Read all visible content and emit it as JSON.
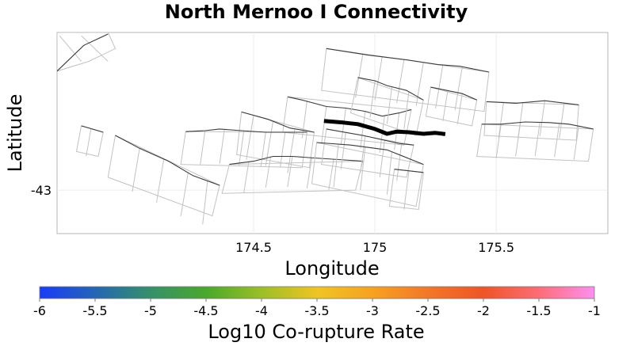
{
  "chart_data": {
    "type": "map",
    "title": "North Mernoo I Connectivity",
    "xlabel": "Longitude",
    "ylabel": "Latitude",
    "xlim": [
      173.69,
      175.96
    ],
    "ylim": [
      -43.135,
      -42.51
    ],
    "x_ticks": [
      174.5,
      175,
      175.5
    ],
    "x_tick_labels": [
      "174.5",
      "175",
      "175.5"
    ],
    "y_ticks": [
      -43
    ],
    "y_tick_labels": [
      "-43"
    ],
    "highlight_fault": {
      "name": "North Mernoo I",
      "color": "#000000",
      "trace": [
        [
          174.79,
          -42.785
        ],
        [
          174.87,
          -42.79
        ],
        [
          174.93,
          -42.795
        ],
        [
          175.0,
          -42.81
        ],
        [
          175.05,
          -42.825
        ],
        [
          175.09,
          -42.818
        ],
        [
          175.14,
          -42.82
        ],
        [
          175.2,
          -42.825
        ],
        [
          175.25,
          -42.822
        ],
        [
          175.29,
          -42.826
        ]
      ]
    },
    "fault_sections": [
      {
        "name": "fault-a",
        "trace": [
          [
            173.69,
            -42.63
          ],
          [
            173.8,
            -42.55
          ],
          [
            173.9,
            -42.515
          ]
        ],
        "cols": [
          [
            173.7,
            173.79,
            173.82,
            173.71
          ],
          [
            173.79,
            173.9,
            173.93,
            173.82
          ]
        ],
        "poly": [
          [
            173.69,
            -42.51
          ],
          [
            173.9,
            -42.51
          ],
          [
            173.93,
            -42.56
          ],
          [
            173.82,
            -42.6
          ],
          [
            173.69,
            -42.63
          ]
        ]
      },
      {
        "name": "fault-b",
        "trace": [
          [
            174.8,
            -42.56
          ],
          [
            174.97,
            -42.58
          ],
          [
            175.13,
            -42.595
          ],
          [
            175.26,
            -42.61
          ],
          [
            175.35,
            -42.615
          ],
          [
            175.47,
            -42.633
          ]
        ],
        "cols": [
          [
            174.95,
            174.92
          ],
          [
            175.03,
            175.0
          ],
          [
            175.12,
            175.09
          ],
          [
            175.2,
            175.17
          ],
          [
            175.28,
            175.25
          ],
          [
            175.36,
            175.33
          ]
        ],
        "poly": [
          [
            174.8,
            -42.56
          ],
          [
            175.47,
            -42.633
          ],
          [
            175.45,
            -42.755
          ],
          [
            174.78,
            -42.69
          ]
        ]
      },
      {
        "name": "fault-c",
        "trace": [
          [
            175.23,
            -42.68
          ],
          [
            175.36,
            -42.7
          ],
          [
            175.42,
            -42.72
          ]
        ],
        "cols": [
          [
            175.3,
            175.28
          ],
          [
            175.36,
            175.34
          ]
        ],
        "poly": [
          [
            175.23,
            -42.68
          ],
          [
            175.42,
            -42.72
          ],
          [
            175.4,
            -42.8
          ],
          [
            175.21,
            -42.77
          ]
        ]
      },
      {
        "name": "fault-d",
        "trace": [
          [
            174.64,
            -42.71
          ],
          [
            174.7,
            -42.72
          ],
          [
            174.8,
            -42.74
          ],
          [
            174.88,
            -42.745
          ],
          [
            174.96,
            -42.755
          ],
          [
            175.03,
            -42.77
          ],
          [
            175.1,
            -42.76
          ],
          [
            175.15,
            -42.75
          ]
        ],
        "cols": [
          [
            174.72,
            174.7
          ],
          [
            174.8,
            174.78
          ],
          [
            174.88,
            174.86
          ],
          [
            174.96,
            174.94
          ],
          [
            175.04,
            175.02
          ],
          [
            175.1,
            175.08
          ]
        ],
        "poly": [
          [
            174.64,
            -42.71
          ],
          [
            175.15,
            -42.75
          ],
          [
            175.12,
            -42.86
          ],
          [
            174.62,
            -42.82
          ]
        ]
      },
      {
        "name": "fault-e",
        "trace": [
          [
            174.93,
            -42.65
          ],
          [
            175.0,
            -42.66
          ],
          [
            175.05,
            -42.675
          ],
          [
            175.13,
            -42.69
          ],
          [
            175.2,
            -42.72
          ]
        ],
        "cols": [
          [
            175.0,
            174.98
          ],
          [
            175.07,
            175.05
          ],
          [
            175.14,
            175.12
          ]
        ],
        "poly": [
          [
            174.93,
            -42.65
          ],
          [
            175.2,
            -42.72
          ],
          [
            175.17,
            -42.83
          ],
          [
            174.9,
            -42.76
          ]
        ]
      },
      {
        "name": "fault-f",
        "trace": [
          [
            175.46,
            -42.725
          ],
          [
            175.58,
            -42.73
          ],
          [
            175.7,
            -42.722
          ],
          [
            175.84,
            -42.735
          ]
        ],
        "cols": [
          [
            175.53,
            175.51
          ],
          [
            175.61,
            175.59
          ],
          [
            175.7,
            175.68
          ],
          [
            175.78,
            175.76
          ]
        ],
        "poly": [
          [
            175.46,
            -42.725
          ],
          [
            175.84,
            -42.735
          ],
          [
            175.83,
            -42.845
          ],
          [
            175.45,
            -42.83
          ]
        ]
      },
      {
        "name": "fault-g",
        "trace": [
          [
            175.44,
            -42.795
          ],
          [
            175.52,
            -42.795
          ],
          [
            175.62,
            -42.788
          ],
          [
            175.72,
            -42.79
          ],
          [
            175.8,
            -42.795
          ],
          [
            175.9,
            -42.81
          ]
        ],
        "cols": [
          [
            175.52,
            175.5
          ],
          [
            175.6,
            175.58
          ],
          [
            175.68,
            175.66
          ],
          [
            175.76,
            175.74
          ],
          [
            175.84,
            175.82
          ]
        ],
        "poly": [
          [
            175.44,
            -42.795
          ],
          [
            175.9,
            -42.81
          ],
          [
            175.88,
            -42.91
          ],
          [
            175.42,
            -42.895
          ]
        ]
      },
      {
        "name": "fault-h",
        "trace": [
          [
            174.45,
            -42.757
          ],
          [
            174.56,
            -42.78
          ],
          [
            174.65,
            -42.807
          ],
          [
            174.75,
            -42.82
          ]
        ],
        "cols": [
          [
            174.5,
            174.47
          ],
          [
            174.58,
            174.55
          ],
          [
            174.67,
            174.64
          ]
        ],
        "poly": [
          [
            174.45,
            -42.757
          ],
          [
            174.75,
            -42.82
          ],
          [
            174.73,
            -42.93
          ],
          [
            174.43,
            -42.89
          ]
        ]
      },
      {
        "name": "fault-i",
        "trace": [
          [
            174.22,
            -42.818
          ],
          [
            174.3,
            -42.815
          ],
          [
            174.36,
            -42.81
          ],
          [
            174.45,
            -42.815
          ],
          [
            174.55,
            -42.82
          ],
          [
            174.63,
            -42.82
          ],
          [
            174.72,
            -42.82
          ]
        ],
        "cols": [
          [
            174.3,
            174.28
          ],
          [
            174.38,
            174.36
          ],
          [
            174.46,
            174.44
          ],
          [
            174.55,
            174.53
          ],
          [
            174.63,
            174.61
          ]
        ],
        "poly": [
          [
            174.22,
            -42.818
          ],
          [
            174.72,
            -42.82
          ],
          [
            174.7,
            -42.93
          ],
          [
            174.2,
            -42.92
          ]
        ]
      },
      {
        "name": "fault-j",
        "trace": [
          [
            173.79,
            -42.8
          ],
          [
            173.88,
            -42.82
          ]
        ],
        "cols": [
          [
            173.83,
            173.81
          ]
        ],
        "poly": [
          [
            173.79,
            -42.8
          ],
          [
            173.88,
            -42.82
          ],
          [
            173.86,
            -42.895
          ],
          [
            173.77,
            -42.88
          ]
        ]
      },
      {
        "name": "fault-k",
        "trace": [
          [
            173.93,
            -42.83
          ],
          [
            174.03,
            -42.87
          ],
          [
            174.15,
            -42.91
          ],
          [
            174.25,
            -42.955
          ],
          [
            174.36,
            -42.985
          ]
        ],
        "cols": [
          [
            174.03,
            174.0
          ],
          [
            174.13,
            174.1
          ],
          [
            174.23,
            174.2
          ],
          [
            174.31,
            174.29
          ]
        ],
        "poly": [
          [
            173.93,
            -42.83
          ],
          [
            174.36,
            -42.985
          ],
          [
            174.33,
            -43.08
          ],
          [
            173.9,
            -42.96
          ]
        ]
      },
      {
        "name": "fault-l",
        "trace": [
          [
            174.4,
            -42.92
          ],
          [
            174.5,
            -42.91
          ],
          [
            174.58,
            -42.895
          ],
          [
            174.66,
            -42.895
          ],
          [
            174.75,
            -42.9
          ],
          [
            174.85,
            -42.905
          ],
          [
            174.95,
            -42.91
          ]
        ],
        "cols": [
          [
            174.48,
            174.46
          ],
          [
            174.57,
            174.55
          ],
          [
            174.66,
            174.64
          ],
          [
            174.74,
            174.72
          ],
          [
            174.83,
            174.81
          ]
        ],
        "poly": [
          [
            174.4,
            -42.92
          ],
          [
            174.95,
            -42.91
          ],
          [
            174.92,
            -43.0
          ],
          [
            174.37,
            -43.01
          ]
        ]
      },
      {
        "name": "fault-m",
        "trace": [
          [
            174.8,
            -42.81
          ],
          [
            174.95,
            -42.83
          ],
          [
            175.1,
            -42.855
          ],
          [
            175.16,
            -42.86
          ]
        ],
        "cols": [
          [
            174.88,
            174.86
          ],
          [
            174.96,
            174.94
          ],
          [
            175.04,
            175.02
          ],
          [
            175.11,
            175.09
          ]
        ],
        "poly": [
          [
            174.8,
            -42.81
          ],
          [
            175.16,
            -42.86
          ],
          [
            175.13,
            -42.96
          ],
          [
            174.78,
            -42.92
          ]
        ]
      },
      {
        "name": "fault-n",
        "trace": [
          [
            174.76,
            -42.852
          ],
          [
            174.9,
            -42.86
          ],
          [
            175.05,
            -42.875
          ],
          [
            175.2,
            -42.92
          ]
        ],
        "cols": [
          [
            174.85,
            174.83
          ],
          [
            174.96,
            174.94
          ],
          [
            175.07,
            175.05
          ]
        ],
        "poly": [
          [
            174.76,
            -42.852
          ],
          [
            175.2,
            -42.92
          ],
          [
            175.17,
            -43.05
          ],
          [
            174.74,
            -42.98
          ]
        ]
      },
      {
        "name": "fault-o",
        "trace": [
          [
            175.08,
            -42.935
          ],
          [
            175.2,
            -42.945
          ]
        ],
        "cols": [
          [
            175.14,
            175.12
          ]
        ],
        "poly": [
          [
            175.08,
            -42.935
          ],
          [
            175.2,
            -42.945
          ],
          [
            175.18,
            -43.06
          ],
          [
            175.06,
            -43.05
          ]
        ]
      }
    ],
    "colorbar": {
      "label": "Log10 Co-rupture Rate",
      "range": [
        -6,
        -1
      ],
      "ticks": [
        -6,
        -5.5,
        -5,
        -4.5,
        -4,
        -3.5,
        -3,
        -2.5,
        -2,
        -1.5,
        -1
      ],
      "tick_labels": [
        "-6",
        "-5.5",
        "-5",
        "-4.5",
        "-4",
        "-3.5",
        "-3",
        "-2.5",
        "-2",
        "-1.5",
        "-1"
      ],
      "stops": [
        {
          "value": -6,
          "color": "#1a3cf7"
        },
        {
          "value": -5.5,
          "color": "#2466b4"
        },
        {
          "value": -5,
          "color": "#36906a"
        },
        {
          "value": -4.5,
          "color": "#4aa82c"
        },
        {
          "value": -4,
          "color": "#9cbe28"
        },
        {
          "value": -3.5,
          "color": "#f0c425"
        },
        {
          "value": -3,
          "color": "#f6a222"
        },
        {
          "value": -2.5,
          "color": "#f2772a"
        },
        {
          "value": -2,
          "color": "#ee5528"
        },
        {
          "value": -1.5,
          "color": "#fb6d77"
        },
        {
          "value": -1,
          "color": "#fd8ff0"
        }
      ]
    }
  }
}
